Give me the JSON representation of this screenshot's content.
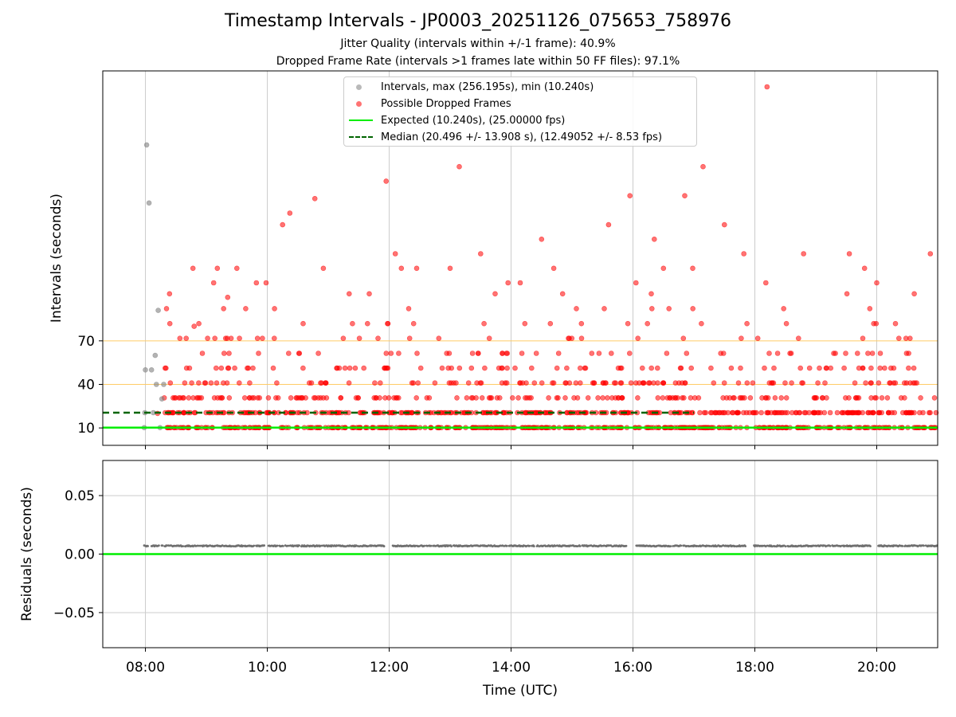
{
  "title": "Timestamp Intervals - JP0003_20251126_075653_758976",
  "subtitle1": "Jitter Quality (intervals within +/-1 frame): 40.9%",
  "subtitle2": "Dropped Frame Rate (intervals >1 frames late within 50 FF files): 97.1%",
  "legend": {
    "intervals": "Intervals, max (256.195s), min (10.240s)",
    "dropped": "Possible Dropped Frames",
    "expected": "Expected (10.240s), (25.00000 fps)",
    "median": "Median (20.496 +/- 13.908 s), (12.49052 +/- 8.53 fps)"
  },
  "colors": {
    "intervals": "#808080",
    "dropped": "#ff0000",
    "expected": "#00ee00",
    "median": "#006400",
    "threshold": "#ffcc66",
    "grid": "#cccccc",
    "residual": "#707070"
  },
  "chart_data": [
    {
      "type": "scatter",
      "panel": "top",
      "ylabel": "Intervals (seconds)",
      "y_ticks": [
        10,
        40,
        70
      ],
      "y_tick_labels": [
        "10",
        "40",
        "70"
      ],
      "ylim": [
        -2,
        256
      ],
      "xlim_hours": [
        7.3,
        21.0
      ],
      "x_tick_labels": [
        "08:00",
        "10:00",
        "12:00",
        "14:00",
        "16:00",
        "18:00",
        "20:00"
      ],
      "x_ticks_hours": [
        8,
        10,
        12,
        14,
        16,
        18,
        20
      ],
      "grid": "x",
      "threshold_lines": [
        40,
        70
      ],
      "expected_interval": 10.24,
      "median_interval": 20.496,
      "median_line_xmax_hours": 17.0,
      "series": [
        {
          "name": "Intervals, max (256.195s), min (10.240s)",
          "color": "#808080",
          "x_hours": [
            7.98,
            7.99,
            8.0,
            8.02,
            8.06,
            8.1,
            8.13,
            8.16,
            8.18,
            8.21,
            8.24,
            8.27,
            8.3
          ],
          "y": [
            10.2,
            20.5,
            50.0,
            205.0,
            165.0,
            50.0,
            20.5,
            60.0,
            40.0,
            91.0,
            10.2,
            30.0,
            40.0
          ]
        },
        {
          "name": "Possible Dropped Frames",
          "color": "#ff0000",
          "outliers": {
            "x_hours": [
              8.2,
              8.78,
              8.8,
              9.12,
              9.18,
              9.35,
              9.5,
              9.82,
              9.98,
              10.25,
              10.37,
              10.78,
              10.92,
              11.95,
              12.1,
              12.2,
              12.45,
              13.0,
              13.15,
              13.5,
              13.95,
              14.15,
              14.5,
              14.7,
              15.6,
              15.95,
              16.05,
              16.35,
              16.5,
              16.85,
              16.98,
              17.15,
              17.5,
              17.82,
              18.18,
              18.2,
              18.8,
              19.55,
              19.8,
              20.0,
              20.88
            ],
            "y": [
              20.0,
              120.0,
              80.0,
              110.0,
              120.0,
              100.0,
              120.0,
              110.0,
              110.0,
              150.0,
              158.0,
              168.0,
              120.0,
              180.0,
              130.0,
              120.0,
              120.0,
              120.0,
              190.0,
              130.0,
              110.0,
              110.0,
              140.0,
              120.0,
              150.0,
              170.0,
              110.0,
              140.0,
              120.0,
              170.0,
              120.0,
              190.0,
              150.0,
              130.0,
              110.0,
              245.0,
              130.0,
              130.0,
              120.0,
              110.0,
              130.0
            ]
          },
          "x_range_hours": [
            8.3,
            21.0
          ],
          "y_levels": [
            10.2,
            20.5,
            30.7,
            41.0,
            51.2,
            61.4,
            71.7,
            81.9,
            92.2,
            102.4
          ]
        }
      ]
    },
    {
      "type": "scatter",
      "panel": "bottom",
      "xlabel": "Time (UTC)",
      "ylabel": "Residuals (seconds)",
      "y_ticks": [
        0.05,
        0.0,
        -0.05
      ],
      "y_tick_labels": [
        "0.05",
        "0.00",
        "−0.05"
      ],
      "ylim": [
        -0.08,
        0.08
      ],
      "xlim_hours": [
        7.3,
        21.0
      ],
      "x_ticks_hours": [
        8,
        10,
        12,
        14,
        16,
        18,
        20
      ],
      "x_tick_labels": [
        "08:00",
        "10:00",
        "12:00",
        "14:00",
        "16:00",
        "18:00",
        "20:00"
      ],
      "grid": "both",
      "zero_line": 0.0,
      "residual_level": 0.007,
      "residual_x_range_hours": [
        7.98,
        21.0
      ],
      "residual_gaps_hours": [
        [
          8.05,
          8.1
        ],
        [
          9.95,
          10.02
        ],
        [
          11.92,
          12.05
        ],
        [
          14.38,
          14.42
        ],
        [
          15.9,
          16.05
        ],
        [
          17.85,
          17.98
        ],
        [
          19.9,
          20.02
        ]
      ]
    }
  ]
}
